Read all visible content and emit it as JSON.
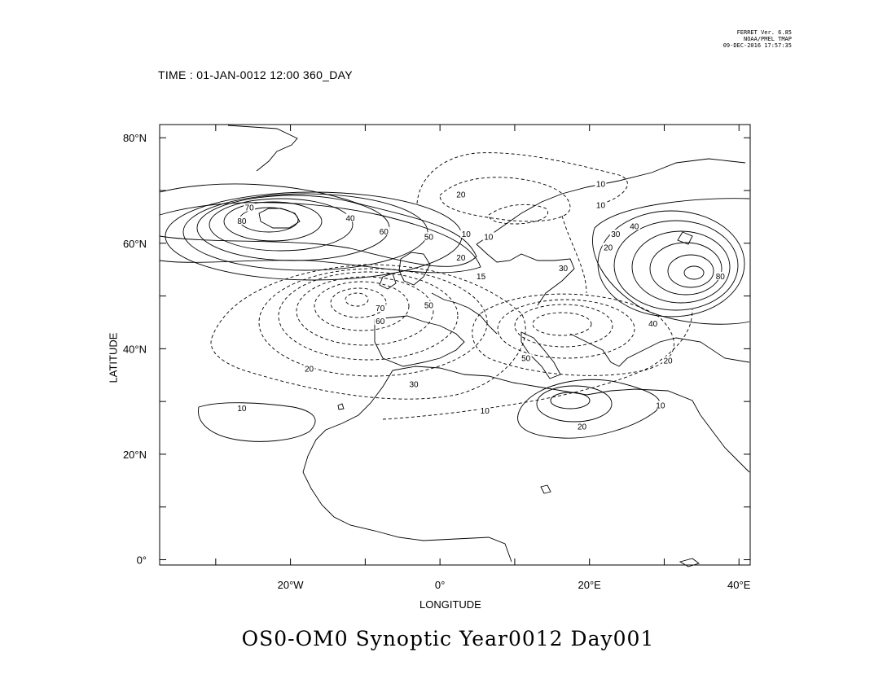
{
  "stamp": {
    "line1": "FERRET Ver. 6.85",
    "line2": "NOAA/PMEL TMAP",
    "line3": "09-DEC-2016 17:57:35"
  },
  "time_label": "TIME : 01-JAN-0012 12:00 360_DAY",
  "title": "OS0-OM0 Synoptic Year0012 Day001",
  "map": {
    "xlabel": "LONGITUDE",
    "ylabel": "LATITUDE",
    "lon_range": [
      -37.5,
      41.5
    ],
    "lat_range": [
      -1,
      82.5
    ],
    "x_ticks": [
      {
        "value": -20,
        "label": "20°W"
      },
      {
        "value": 0,
        "label": "0°"
      },
      {
        "value": 20,
        "label": "20°E"
      },
      {
        "value": 40,
        "label": "40°E"
      }
    ],
    "y_ticks": [
      {
        "value": 0,
        "label": "0°"
      },
      {
        "value": 20,
        "label": "20°N"
      },
      {
        "value": 40,
        "label": "40°N"
      },
      {
        "value": 60,
        "label": "60°N"
      },
      {
        "value": 80,
        "label": "80°N"
      }
    ],
    "contour_labels": [
      {
        "text": "70",
        "lon": -25.5,
        "lat": 66.5
      },
      {
        "text": "80",
        "lon": -26.5,
        "lat": 64.0
      },
      {
        "text": "40",
        "lon": -12.0,
        "lat": 64.5
      },
      {
        "text": "60",
        "lon": -7.5,
        "lat": 62.0
      },
      {
        "text": "50",
        "lon": -1.5,
        "lat": 61.0
      },
      {
        "text": "10",
        "lon": 3.5,
        "lat": 61.5
      },
      {
        "text": "20",
        "lon": 2.8,
        "lat": 57.0
      },
      {
        "text": "10",
        "lon": 21.5,
        "lat": 71.0
      },
      {
        "text": "10",
        "lon": 21.5,
        "lat": 67.0
      },
      {
        "text": "40",
        "lon": 26.0,
        "lat": 63.0
      },
      {
        "text": "30",
        "lon": 23.5,
        "lat": 61.5
      },
      {
        "text": "20",
        "lon": 22.5,
        "lat": 59.0
      },
      {
        "text": "80",
        "lon": 37.5,
        "lat": 53.5
      },
      {
        "text": "20",
        "lon": 2.8,
        "lat": 69.0
      },
      {
        "text": "10",
        "lon": 6.5,
        "lat": 61.0
      },
      {
        "text": "30",
        "lon": 16.5,
        "lat": 55.0
      },
      {
        "text": "15",
        "lon": 5.5,
        "lat": 53.5
      },
      {
        "text": "70",
        "lon": -8.0,
        "lat": 47.5
      },
      {
        "text": "60",
        "lon": -8.0,
        "lat": 45.0
      },
      {
        "text": "50",
        "lon": -1.5,
        "lat": 48.0
      },
      {
        "text": "40",
        "lon": 28.5,
        "lat": 44.5
      },
      {
        "text": "50",
        "lon": 11.5,
        "lat": 38.0
      },
      {
        "text": "20",
        "lon": 30.5,
        "lat": 37.5
      },
      {
        "text": "30",
        "lon": -3.5,
        "lat": 33.0
      },
      {
        "text": "20",
        "lon": -17.5,
        "lat": 36.0
      },
      {
        "text": "10",
        "lon": 6.0,
        "lat": 28.0
      },
      {
        "text": "10",
        "lon": -26.5,
        "lat": 28.5
      },
      {
        "text": "20",
        "lon": 19.0,
        "lat": 25.0
      },
      {
        "text": "10",
        "lon": 29.5,
        "lat": 29.0
      }
    ]
  }
}
